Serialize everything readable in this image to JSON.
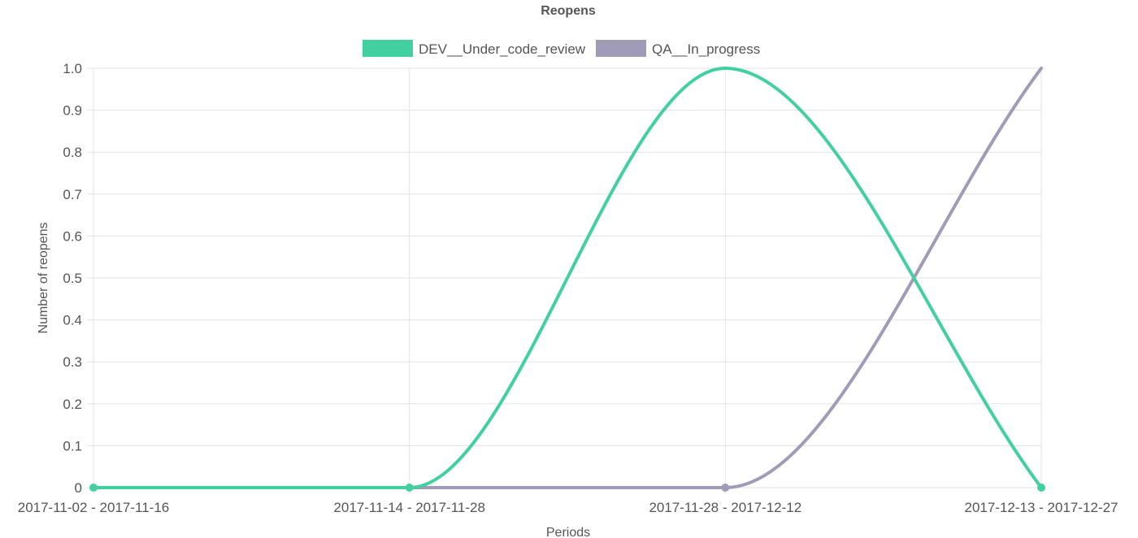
{
  "chart_data": {
    "type": "line",
    "title": "Reopens",
    "xlabel": "Periods",
    "ylabel": "Number of reopens",
    "categories": [
      "2017-11-02 - 2017-11-16",
      "2017-11-14 - 2017-11-28",
      "2017-11-28 - 2017-12-12",
      "2017-12-13 - 2017-12-27"
    ],
    "series": [
      {
        "name": "DEV__Under_code_review",
        "values": [
          0,
          0,
          1,
          0
        ],
        "color": "#43d0a0"
      },
      {
        "name": "QA__In_progress",
        "values": [
          0,
          0,
          0,
          1
        ],
        "color": "#a09cb8"
      }
    ],
    "ylim": [
      0,
      1
    ],
    "yticks": [
      "0",
      "0.1",
      "0.2",
      "0.3",
      "0.4",
      "0.5",
      "0.6",
      "0.7",
      "0.8",
      "0.9",
      "1.0"
    ],
    "ytick_values": [
      0,
      0.1,
      0.2,
      0.3,
      0.4,
      0.5,
      0.6,
      0.7,
      0.8,
      0.9,
      1.0
    ],
    "grid": true,
    "legend_position": "top-center",
    "smooth": true
  }
}
